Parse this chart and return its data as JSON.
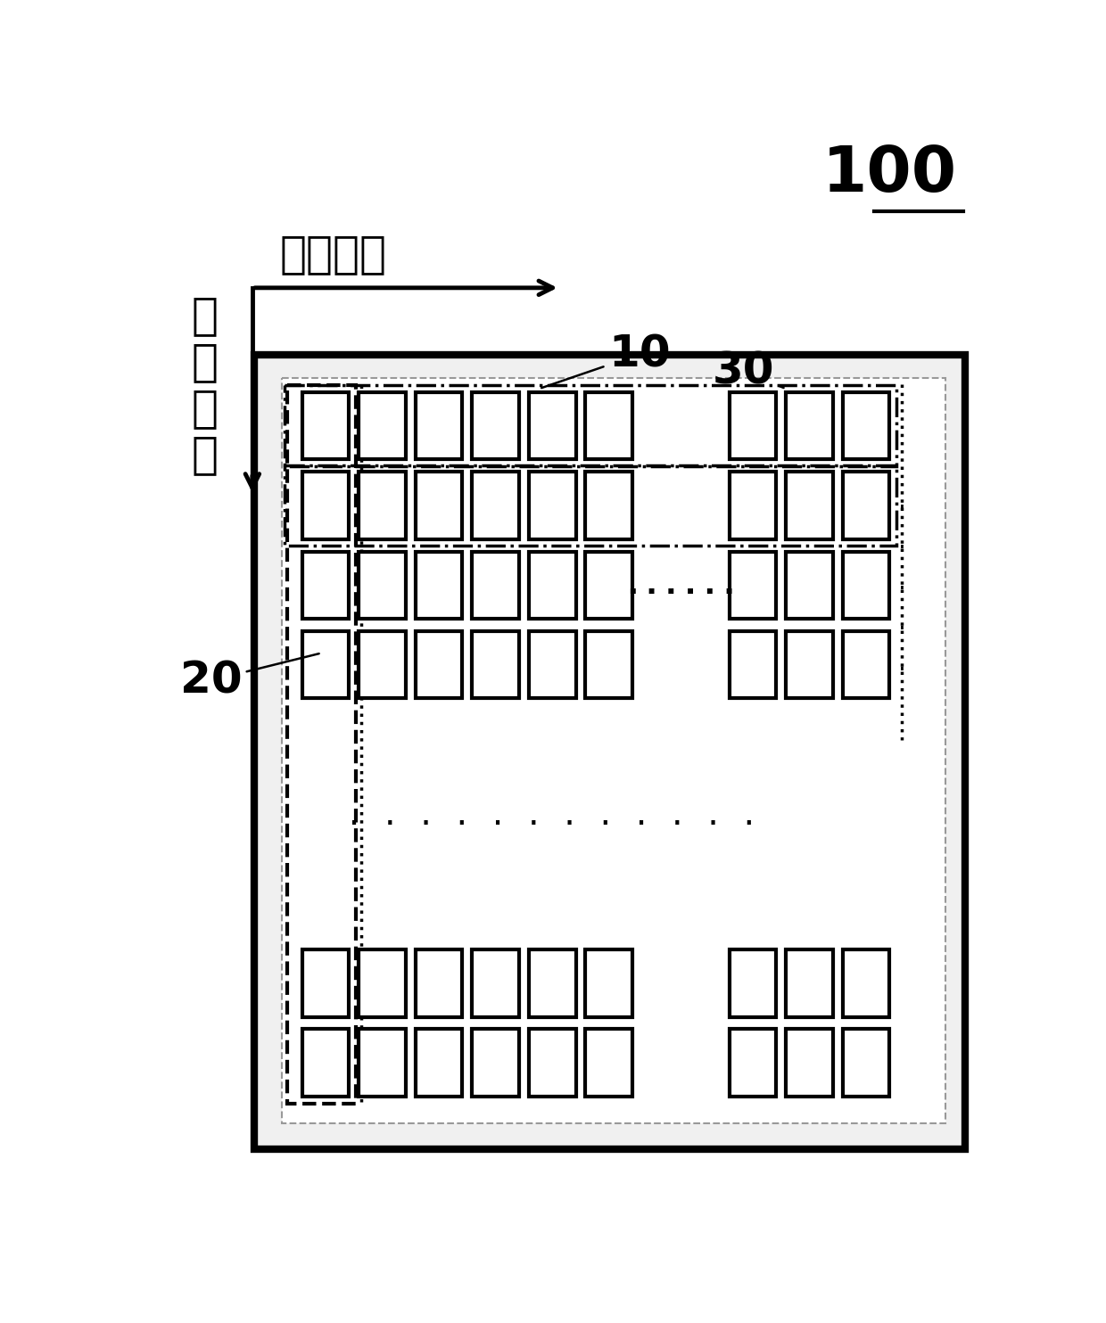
{
  "fig_width": 12.4,
  "fig_height": 14.84,
  "dpi": 100,
  "bg_color": "#ffffff",
  "label_100": "100",
  "label_10": "10",
  "label_20": "20",
  "label_30": "30",
  "label_dir1": "第一方向",
  "label_dir2": "第\n二\n方\n向",
  "arrow_lw": 3.5,
  "outer_lw": 6,
  "inner_gray_lw": 1.5,
  "dashdot_lw": 2.5,
  "col_dash_lw": 3.0,
  "dot_lw": 2.5,
  "cell_lw": 3.0,
  "font_dir": 36,
  "font_100": 52,
  "font_label": 36,
  "font_dots": 26
}
